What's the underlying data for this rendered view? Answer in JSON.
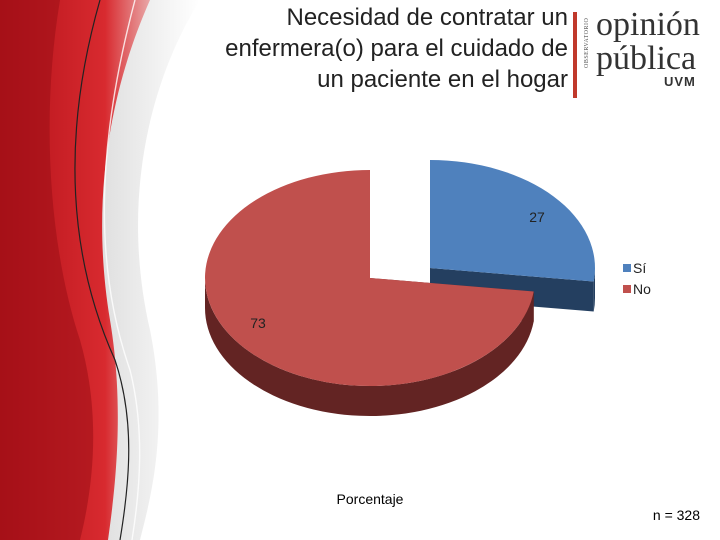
{
  "slide": {
    "title_lines": [
      "Necesidad de contratar un",
      "enfermera(o) para el cuidado de",
      "un paciente en el hogar"
    ],
    "sample_size": "n = 328"
  },
  "logo": {
    "line1": "opinión",
    "line2": "pública",
    "line3": "UVM",
    "vertical": "OBSERVATORIO",
    "colors": {
      "accent": "#c0392b"
    }
  },
  "chart_data": {
    "type": "pie",
    "title": "",
    "xlabel": "Porcentaje",
    "categories": [
      "Sí",
      "No"
    ],
    "values": [
      27,
      73
    ],
    "data_labels": [
      "27",
      "73"
    ],
    "colors": [
      "#4f81bd",
      "#c0504d"
    ],
    "side_colors": [
      "#243f60",
      "#632423"
    ],
    "legend_position": "right",
    "three_d": true,
    "exploded": true
  },
  "colors": {
    "red_band": "#c8202a",
    "dark_red": "#8b0f14"
  }
}
